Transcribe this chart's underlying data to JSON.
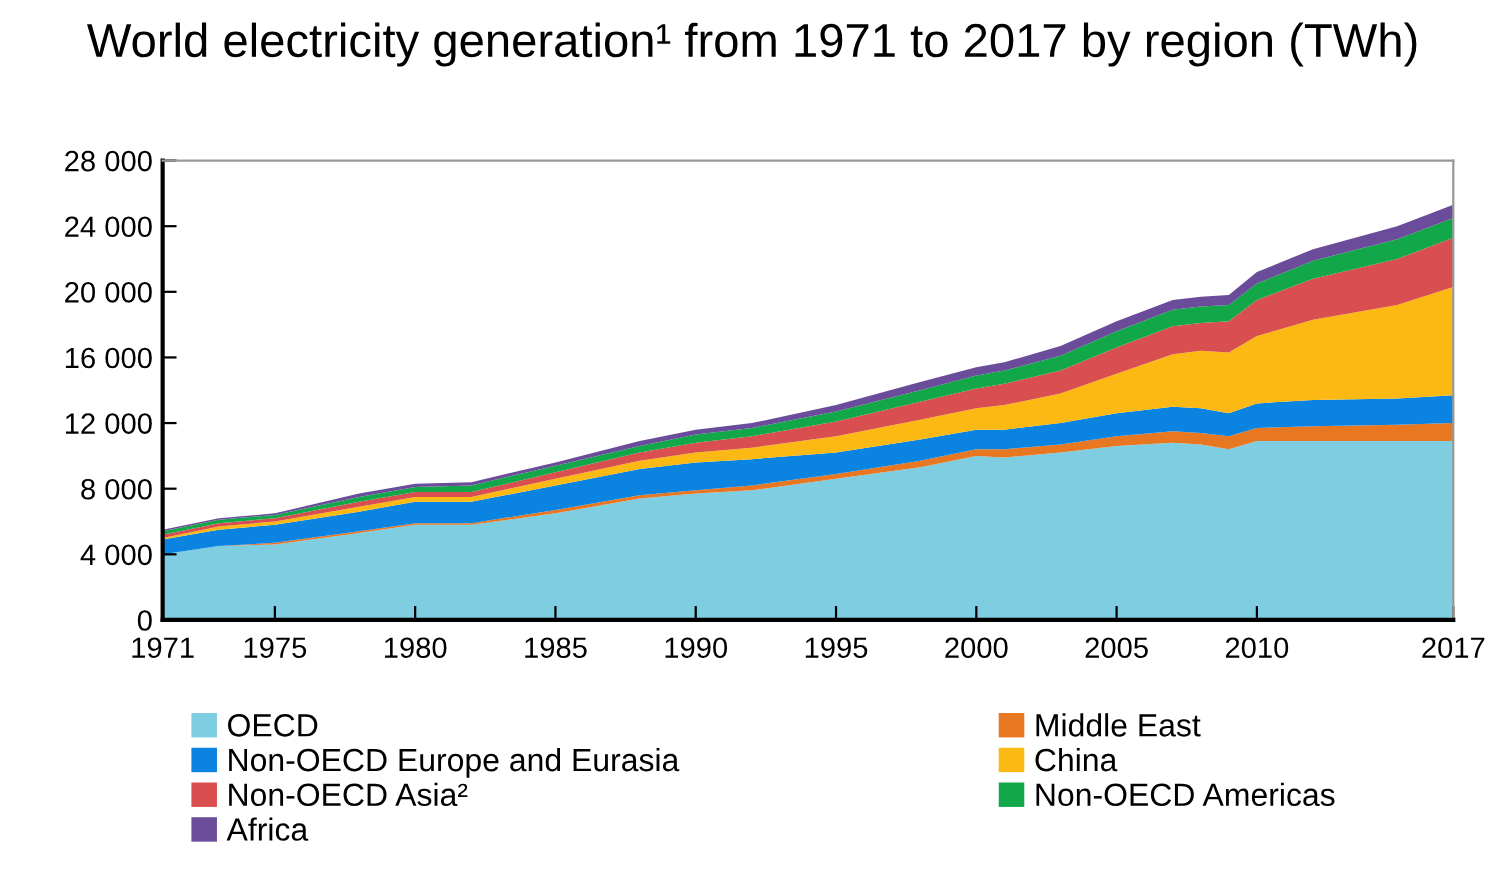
{
  "chart_data": {
    "type": "area",
    "stacked": true,
    "title": "World electricity generation¹ from 1971 to 2017 by region (TWh)",
    "x": [
      1971,
      1973,
      1975,
      1978,
      1980,
      1982,
      1985,
      1988,
      1990,
      1992,
      1995,
      1998,
      2000,
      2001,
      2003,
      2005,
      2007,
      2008,
      2009,
      2010,
      2012,
      2015,
      2017
    ],
    "series": [
      {
        "name": "OECD",
        "color": "#7ecde0",
        "values": [
          4000,
          4500,
          4600,
          5300,
          5800,
          5800,
          6500,
          7400,
          7700,
          7900,
          8600,
          9300,
          10000,
          9900,
          10200,
          10600,
          10800,
          10700,
          10400,
          10900,
          10900,
          10900,
          10900
        ]
      },
      {
        "name": "Middle East",
        "color": "#e87722",
        "values": [
          0,
          0,
          100,
          100,
          100,
          100,
          200,
          200,
          200,
          300,
          300,
          400,
          400,
          500,
          500,
          600,
          700,
          700,
          800,
          800,
          900,
          1000,
          1100
        ]
      },
      {
        "name": "Non-OECD Europe and Eurasia",
        "color": "#0a84e0",
        "values": [
          900,
          1000,
          1100,
          1200,
          1300,
          1300,
          1500,
          1600,
          1700,
          1600,
          1300,
          1300,
          1200,
          1200,
          1300,
          1400,
          1500,
          1500,
          1400,
          1500,
          1600,
          1600,
          1700
        ]
      },
      {
        "name": "China",
        "color": "#fdb913",
        "values": [
          100,
          200,
          200,
          300,
          300,
          300,
          400,
          500,
          600,
          700,
          1000,
          1200,
          1300,
          1500,
          1800,
          2400,
          3200,
          3500,
          3700,
          4100,
          4900,
          5700,
          6600
        ]
      },
      {
        "name": "Non-OECD Asia²",
        "color": "#d94f4f",
        "values": [
          200,
          200,
          200,
          300,
          300,
          300,
          400,
          500,
          600,
          700,
          900,
          1100,
          1200,
          1300,
          1400,
          1600,
          1700,
          1700,
          1900,
          2200,
          2500,
          2800,
          3000
        ]
      },
      {
        "name": "Non-OECD Americas",
        "color": "#12a84a",
        "values": [
          200,
          200,
          200,
          300,
          300,
          400,
          400,
          400,
          500,
          500,
          600,
          700,
          800,
          800,
          900,
          1000,
          1000,
          1000,
          1000,
          1000,
          1100,
          1200,
          1200
        ]
      },
      {
        "name": "Africa",
        "color": "#6b4c9a",
        "values": [
          100,
          100,
          100,
          200,
          200,
          200,
          200,
          300,
          300,
          300,
          400,
          500,
          500,
          500,
          600,
          600,
          600,
          600,
          600,
          700,
          700,
          800,
          800
        ]
      }
    ],
    "xlim": [
      1971,
      2017
    ],
    "xticks": [
      1971,
      1975,
      1980,
      1985,
      1990,
      1995,
      2000,
      2005,
      2010,
      2017
    ],
    "ylim": [
      0,
      28000
    ],
    "yticks": [
      0,
      {
        "value": 4000,
        "label": "4 000"
      },
      {
        "value": 8000,
        "label": "8 000"
      },
      {
        "value": 12000,
        "label": "12 000"
      },
      {
        "value": 16000,
        "label": "16 000"
      },
      {
        "value": 20000,
        "label": "20 000"
      },
      {
        "value": 24000,
        "label": "24 000"
      },
      {
        "value": 28000,
        "label": "28 000"
      }
    ],
    "legend": "bottom",
    "grid": false
  }
}
